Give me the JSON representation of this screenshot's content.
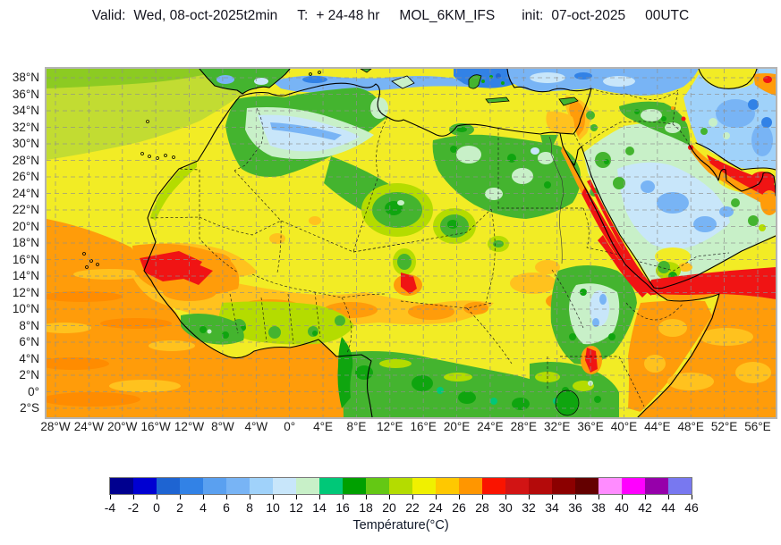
{
  "header": {
    "valid_label": "Valid:",
    "valid_value": "Wed, 08-oct-2025",
    "variable": "t2min",
    "t_label": "T:",
    "lead_time": "+ 24-48 hr",
    "model": "MOL_6KM_IFS",
    "init_label": "init:",
    "init_value": "07-oct-2025",
    "cycle": "00UTC"
  },
  "map": {
    "lat_ticks": [
      "38°N",
      "36°N",
      "34°N",
      "32°N",
      "30°N",
      "28°N",
      "26°N",
      "24°N",
      "22°N",
      "20°N",
      "18°N",
      "16°N",
      "14°N",
      "12°N",
      "10°N",
      "8°N",
      "6°N",
      "4°N",
      "2°N",
      "0°",
      "2°S"
    ],
    "lon_ticks": [
      "28°W",
      "24°W",
      "20°W",
      "16°W",
      "12°W",
      "8°W",
      "4°W",
      "0°",
      "4°E",
      "8°E",
      "12°E",
      "16°E",
      "20°E",
      "24°E",
      "28°E",
      "32°E",
      "36°E",
      "40°E",
      "44°E",
      "48°E",
      "52°E",
      "56°E"
    ]
  },
  "colorbar": {
    "title": "Température(°C)",
    "tick_values": [
      "-4",
      "-2",
      "0",
      "2",
      "4",
      "6",
      "8",
      "10",
      "12",
      "14",
      "16",
      "18",
      "20",
      "22",
      "24",
      "26",
      "28",
      "30",
      "32",
      "34",
      "36",
      "38",
      "40",
      "42",
      "44",
      "46"
    ],
    "segment_colors": [
      "#00008F",
      "#0000D2",
      "#1E64D2",
      "#3282E6",
      "#5AA0F0",
      "#78B4F5",
      "#A0D2FA",
      "#C8E6FA",
      "#C8F0C8",
      "#00C878",
      "#00A000",
      "#64C814",
      "#B4DC00",
      "#F0F000",
      "#FFC800",
      "#FF9600",
      "#FA1400",
      "#D21414",
      "#B40A0A",
      "#8C0000",
      "#640000",
      "#FF8CFF",
      "#FF00FF",
      "#9600AA",
      "#7878F0"
    ]
  }
}
